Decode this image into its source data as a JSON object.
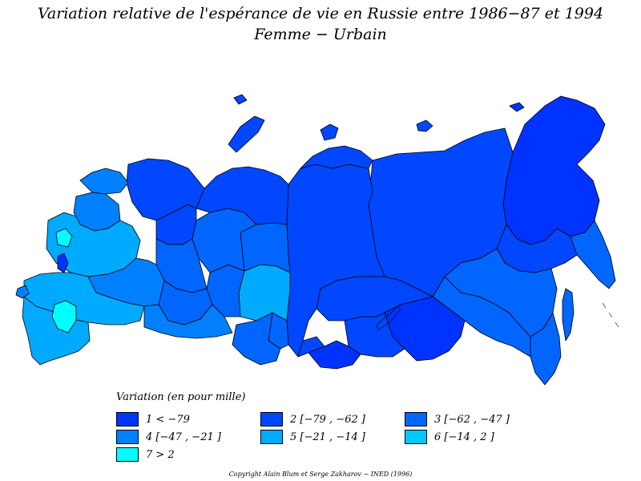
{
  "title": {
    "line1": "Variation relative de l'espérance de vie en Russie entre 1986−87 et 1994",
    "line2": "Femme  −  Urbain"
  },
  "legend": {
    "title": "Variation (en pour mille)",
    "items": [
      {
        "class": "1",
        "label": "1  <  −79",
        "color": "#0033ff"
      },
      {
        "class": "2",
        "label": "2  [−79 ,  −62 ]",
        "color": "#0047ff"
      },
      {
        "class": "3",
        "label": "3  [−62 ,  −47 ]",
        "color": "#0066ff"
      },
      {
        "class": "4",
        "label": "4  [−47 ,  −21 ]",
        "color": "#0080ff"
      },
      {
        "class": "5",
        "label": "5  [−21 ,  −14 ]",
        "color": "#00aaff"
      },
      {
        "class": "6",
        "label": "6  [−14 ,  2 ]",
        "color": "#00c8ff"
      },
      {
        "class": "7",
        "label": "7  >  2",
        "color": "#00ffff"
      }
    ]
  },
  "copyright": "Copyright  Alain  Blum  et  Serge  Zakharov  −  INED  (1996)"
}
